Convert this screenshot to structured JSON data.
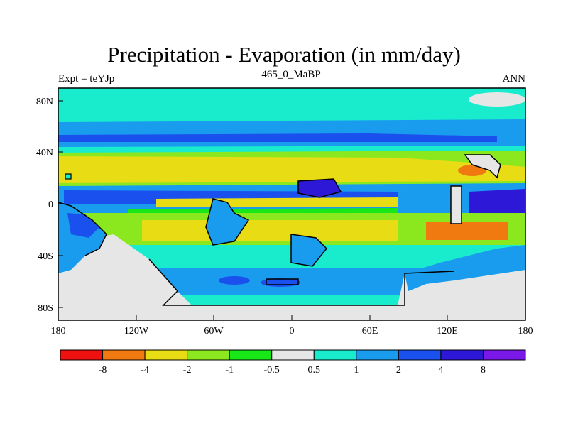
{
  "title": "Precipitation - Evaporation (in mm/day)",
  "subtitle": "465_0_MaBP",
  "left_label": "Expt = teYJp",
  "right_label": "ANN",
  "x_ticks": [
    "180",
    "120W",
    "60W",
    "0",
    "60E",
    "120E",
    "180"
  ],
  "y_ticks": [
    "80N",
    "40N",
    "0",
    "40S",
    "80S"
  ],
  "colorbar": {
    "colors": [
      "#ef1010",
      "#f07a10",
      "#e8dc14",
      "#8ce81e",
      "#18e818",
      "#e6e6e6",
      "#18eccc",
      "#1a9cee",
      "#1a50ee",
      "#2e18d8",
      "#7a18e8"
    ],
    "labels": [
      "-8",
      "-4",
      "-2",
      "-1",
      "-0.5",
      "0.5",
      "1",
      "2",
      "4",
      "8"
    ]
  },
  "colors": {
    "ocean_bg": "#18eccc",
    "land_low": "#e6e6e6"
  }
}
